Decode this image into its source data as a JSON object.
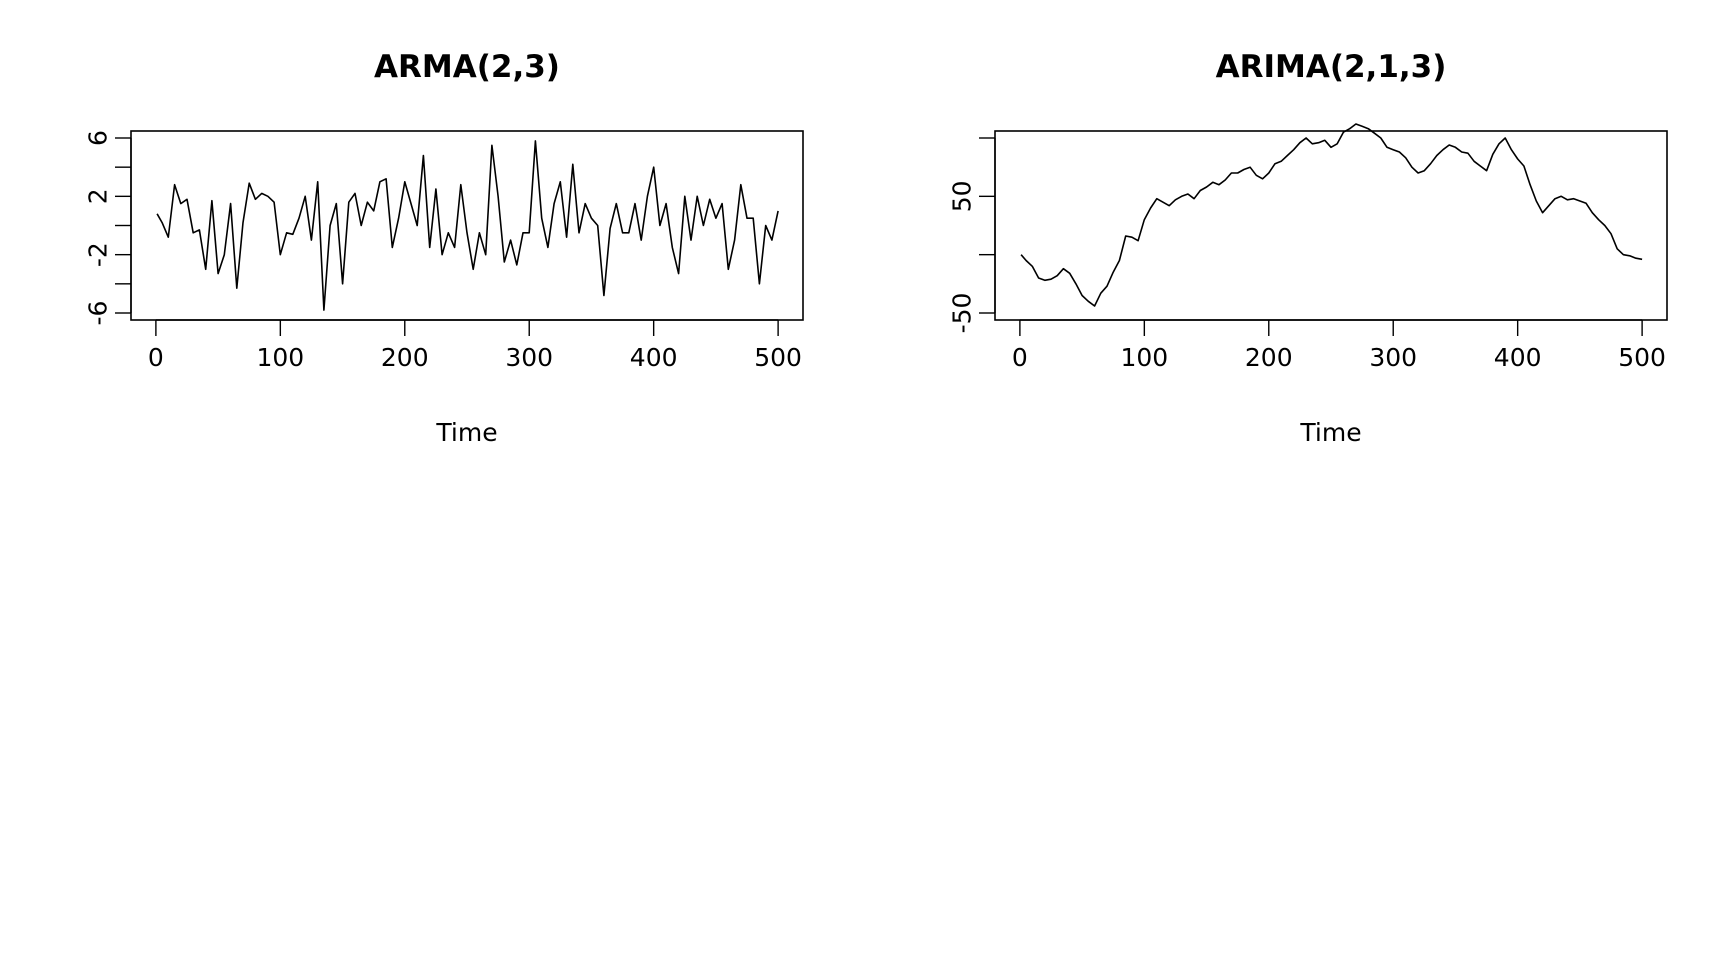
{
  "chart_data": [
    {
      "type": "line",
      "title": "ARMA(2,3)",
      "xlabel": "Time",
      "ylabel": "",
      "xlim": [
        0,
        500
      ],
      "ylim": [
        -6,
        6
      ],
      "xticks": [
        0,
        100,
        200,
        300,
        400,
        500
      ],
      "yticks": [
        -6,
        -4,
        -2,
        0,
        2,
        4,
        6
      ],
      "ytick_labels": [
        "-6",
        "",
        "-2",
        "",
        "2",
        "",
        "6"
      ],
      "grid": false,
      "series": [
        {
          "x": [
            1,
            5,
            10,
            15,
            20,
            25,
            30,
            35,
            40,
            45,
            50,
            55,
            60,
            65,
            70,
            75,
            80,
            85,
            90,
            95,
            100,
            105,
            110,
            115,
            120,
            125,
            130,
            135,
            140,
            145,
            150,
            155,
            160,
            165,
            170,
            175,
            180,
            185,
            190,
            195,
            200,
            205,
            210,
            215,
            220,
            225,
            230,
            235,
            240,
            245,
            250,
            255,
            260,
            265,
            270,
            275,
            280,
            285,
            290,
            295,
            300,
            305,
            310,
            315,
            320,
            325,
            330,
            335,
            340,
            345,
            350,
            355,
            360,
            365,
            370,
            375,
            380,
            385,
            390,
            395,
            400,
            405,
            410,
            415,
            420,
            425,
            430,
            435,
            440,
            445,
            450,
            455,
            460,
            465,
            470,
            475,
            480,
            485,
            490,
            495,
            500
          ],
          "y": [
            0.8,
            0.2,
            -0.8,
            2.8,
            1.5,
            1.8,
            -0.5,
            -0.3,
            -3.0,
            1.7,
            -3.3,
            -2.0,
            1.5,
            -4.3,
            0.2,
            2.9,
            1.8,
            2.2,
            2.0,
            1.6,
            -2.0,
            -0.5,
            -0.6,
            0.5,
            2.0,
            -1.0,
            3.0,
            -5.8,
            0.0,
            1.5,
            -4.0,
            1.6,
            2.2,
            0.0,
            1.6,
            1.0,
            3.0,
            3.2,
            -1.5,
            0.5,
            3.0,
            1.5,
            0.0,
            4.8,
            -1.5,
            2.5,
            -2.0,
            -0.5,
            -1.5,
            2.8,
            -0.5,
            -3.0,
            -0.5,
            -2.0,
            5.5,
            2.0,
            -2.5,
            -1.0,
            -2.7,
            -0.5,
            -0.5,
            5.8,
            0.5,
            -1.5,
            1.5,
            3.0,
            -0.8,
            4.2,
            -0.5,
            1.5,
            0.5,
            0.0,
            -4.8,
            -0.2,
            1.5,
            -0.5,
            -0.5,
            1.5,
            -1.0,
            2.0,
            4.0,
            0.0,
            1.5,
            -1.5,
            -3.3,
            2.0,
            -1.0,
            2.0,
            0.0,
            1.8,
            0.5,
            1.5,
            -3.0,
            -1.0,
            2.8,
            0.5,
            0.5,
            -4.0,
            0.0,
            -1.0,
            1.0
          ]
        }
      ]
    },
    {
      "type": "line",
      "title": "ARIMA(2,1,3)",
      "xlabel": "Time",
      "ylabel": "",
      "xlim": [
        0,
        500
      ],
      "ylim": [
        -50,
        100
      ],
      "xticks": [
        0,
        100,
        200,
        300,
        400,
        500
      ],
      "yticks": [
        -50,
        0,
        50,
        100
      ],
      "ytick_labels": [
        "-50",
        "",
        "50",
        ""
      ],
      "grid": false,
      "series": [
        {
          "x": [
            1,
            5,
            10,
            15,
            20,
            25,
            30,
            35,
            40,
            45,
            50,
            55,
            60,
            65,
            70,
            75,
            80,
            85,
            90,
            95,
            100,
            105,
            110,
            115,
            120,
            125,
            130,
            135,
            140,
            145,
            150,
            155,
            160,
            165,
            170,
            175,
            180,
            185,
            190,
            195,
            200,
            205,
            210,
            215,
            220,
            225,
            230,
            235,
            240,
            245,
            250,
            255,
            260,
            265,
            270,
            275,
            280,
            285,
            290,
            295,
            300,
            305,
            310,
            315,
            320,
            325,
            330,
            335,
            340,
            345,
            350,
            355,
            360,
            365,
            370,
            375,
            380,
            385,
            390,
            395,
            400,
            405,
            410,
            415,
            420,
            425,
            430,
            435,
            440,
            445,
            450,
            455,
            460,
            465,
            470,
            475,
            480,
            485,
            490,
            495,
            500
          ],
          "y": [
            0,
            -5,
            -10,
            -20,
            -22,
            -21,
            -18,
            -12,
            -16,
            -25,
            -35,
            -40,
            -44,
            -33,
            -27,
            -15,
            -5,
            16,
            15,
            12,
            30,
            40,
            48,
            45,
            42,
            47,
            50,
            52,
            48,
            55,
            58,
            62,
            60,
            64,
            70,
            70,
            73,
            75,
            68,
            65,
            70,
            78,
            80,
            85,
            90,
            96,
            100,
            95,
            96,
            98,
            92,
            95,
            105,
            108,
            112,
            110,
            108,
            104,
            100,
            92,
            90,
            88,
            83,
            75,
            70,
            72,
            78,
            85,
            90,
            94,
            92,
            88,
            87,
            80,
            76,
            72,
            86,
            95,
            100,
            90,
            82,
            76,
            60,
            46,
            36,
            42,
            48,
            50,
            47,
            48,
            46,
            44,
            36,
            30,
            25,
            18,
            5,
            0,
            -1,
            -3,
            -4
          ]
        }
      ]
    }
  ]
}
